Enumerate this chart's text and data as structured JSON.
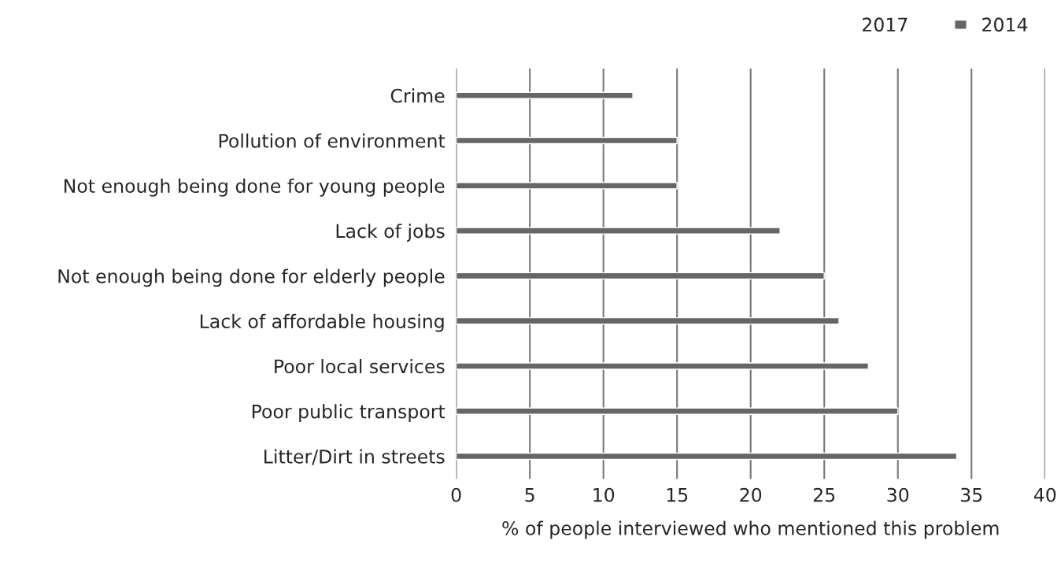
{
  "chart_data": {
    "type": "bar",
    "orientation": "horizontal",
    "xlabel": "% of people interviewed who mentioned this problem",
    "categories": [
      "Crime",
      "Pollution of environment",
      "Not enough being done for young people",
      "Lack of jobs",
      "Not enough being done for elderly people",
      "Lack of affordable housing",
      "Poor local services",
      "Poor public transport",
      "Litter/Dirt in streets"
    ],
    "series": [
      {
        "name": "2017",
        "values": [
          null,
          null,
          null,
          null,
          null,
          null,
          null,
          null,
          null
        ]
      },
      {
        "name": "2014",
        "color": "#666666",
        "values": [
          12,
          15,
          15,
          22,
          25,
          26,
          28,
          30,
          34
        ]
      }
    ],
    "xlim": [
      0,
      40
    ],
    "xticks": [
      0,
      5,
      10,
      15,
      20,
      25,
      30,
      35,
      40
    ],
    "grid": "x",
    "legend": "top right"
  }
}
